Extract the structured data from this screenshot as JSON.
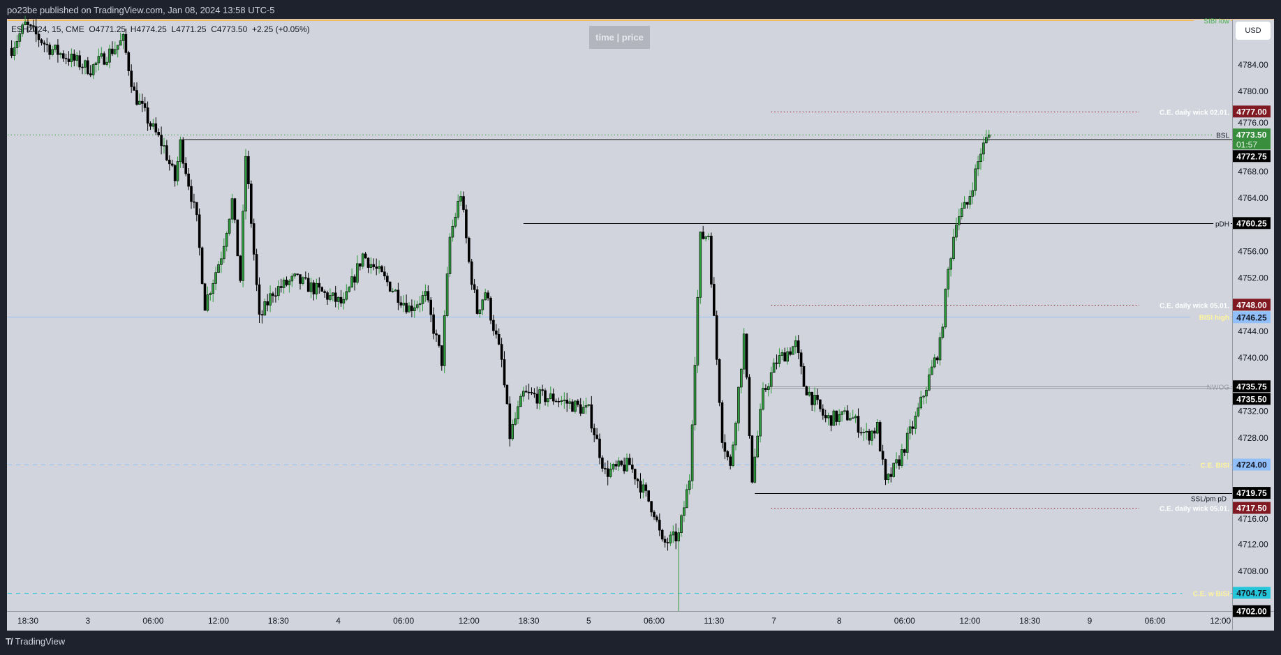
{
  "header": {
    "published": "po23be published on TradingView.com, Jan 08, 2024 13:58 UTC-5"
  },
  "legend": {
    "symbol": "ESH2024, 15, CME",
    "open": "O4771.25",
    "high": "H4774.25",
    "low": "L4771.25",
    "close": "C4773.50",
    "change": "+2.25 (+0.05%)"
  },
  "toolbar": {
    "time_price_label": "time | price",
    "currency": "USD"
  },
  "footer": {
    "brand": "TradingView",
    "logo_text": "TV"
  },
  "colors": {
    "background": "#d1d4dc",
    "up": "#2e9b3c",
    "down": "#000000",
    "sibi": "#f5b74d",
    "bisi": "#90bff9",
    "w_bisi": "#26c6da",
    "daily_wick": "#801922",
    "current": "#388e3c"
  },
  "chart_data": {
    "type": "candlestick",
    "symbol": "ESH2024",
    "timeframe": "15",
    "y_ticks": [
      4784,
      4780,
      4776,
      4768,
      4764,
      4756,
      4752,
      4744,
      4740,
      4732,
      4728,
      4716,
      4712,
      4708
    ],
    "x_ticks": [
      {
        "label": "18:30",
        "t": "01-02 18:30"
      },
      {
        "label": "3",
        "t": "01-03 00:00"
      },
      {
        "label": "06:00",
        "t": "01-03 06:00"
      },
      {
        "label": "12:00",
        "t": "01-03 12:00"
      },
      {
        "label": "18:30",
        "t": "01-03 18:30"
      },
      {
        "label": "4",
        "t": "01-04 00:00"
      },
      {
        "label": "06:00",
        "t": "01-04 06:00"
      },
      {
        "label": "12:00",
        "t": "01-04 12:00"
      },
      {
        "label": "18:30",
        "t": "01-04 18:30"
      },
      {
        "label": "5",
        "t": "01-05 00:00"
      },
      {
        "label": "06:00",
        "t": "01-05 06:00"
      },
      {
        "label": "11:30",
        "t": "01-05 11:30"
      },
      {
        "label": "7",
        "t": "01-07 18:00"
      },
      {
        "label": "8",
        "t": "01-08 00:00"
      },
      {
        "label": "06:00",
        "t": "01-08 06:00"
      },
      {
        "label": "12:00",
        "t": "01-08 12:00"
      },
      {
        "label": "18:30",
        "t": "01-08 18:30"
      },
      {
        "label": "9",
        "t": "01-09 00:00"
      },
      {
        "label": "06:00",
        "t": "01-09 06:00"
      },
      {
        "label": "12:00",
        "t": "01-09 12:00"
      }
    ],
    "price_path": [
      [
        "01-02 16:00",
        4786.5
      ],
      [
        "01-02 18:15",
        4790
      ],
      [
        "01-02 20:30",
        4786.5
      ],
      [
        "01-03 00:15",
        4783.4
      ],
      [
        "01-03 01:45",
        4785.5
      ],
      [
        "01-03 03:15",
        4787.7
      ],
      [
        "01-03 04:15",
        4779.7
      ],
      [
        "01-03 05:45",
        4775
      ],
      [
        "01-03 07:00",
        4771.6
      ],
      [
        "01-03 08:00",
        4766.7
      ],
      [
        "01-03 08:30",
        4772.2
      ],
      [
        "01-03 10:00",
        4760.5
      ],
      [
        "01-03 10:45",
        4748
      ],
      [
        "01-03 12:15",
        4755.5
      ],
      [
        "01-03 13:15",
        4763.6
      ],
      [
        "01-03 14:00",
        4751.8
      ],
      [
        "01-03 14:30",
        4770.4
      ],
      [
        "01-03 15:45",
        4745.7
      ],
      [
        "01-03 18:00",
        4750
      ],
      [
        "01-03 20:00",
        4751.8
      ],
      [
        "01-03 22:15",
        4750
      ],
      [
        "01-04 00:30",
        4748
      ],
      [
        "01-04 02:15",
        4755.5
      ],
      [
        "01-04 04:15",
        4751.8
      ],
      [
        "01-04 06:30",
        4747.5
      ],
      [
        "01-04 08:00",
        4749.3
      ],
      [
        "01-04 09:30",
        4739.5
      ],
      [
        "01-04 10:15",
        4758
      ],
      [
        "01-04 11:15",
        4764.8
      ],
      [
        "01-04 12:00",
        4754.3
      ],
      [
        "01-04 12:45",
        4747
      ],
      [
        "01-04 13:30",
        4750
      ],
      [
        "01-04 15:00",
        4739.5
      ],
      [
        "01-04 15:45",
        4728.3
      ],
      [
        "01-04 18:00",
        4734.5
      ],
      [
        "01-04 21:00",
        4733.9
      ],
      [
        "01-05 00:00",
        4732
      ],
      [
        "01-05 01:30",
        4722.8
      ],
      [
        "01-05 03:45",
        4724
      ],
      [
        "01-05 06:00",
        4717
      ],
      [
        "01-05 06:45",
        4712
      ],
      [
        "01-05 08:15",
        4713.3
      ],
      [
        "01-05 09:15",
        4722
      ],
      [
        "01-05 10:15",
        4758
      ],
      [
        "01-05 11:00",
        4758.6
      ],
      [
        "01-05 11:30",
        4745.7
      ],
      [
        "01-05 12:15",
        4728.3
      ],
      [
        "01-05 13:00",
        4723.4
      ],
      [
        "01-05 14:15",
        4743.2
      ],
      [
        "01-05 15:00",
        4722
      ],
      [
        "01-05 16:00",
        4734.5
      ],
      [
        "01-07 18:15",
        4739.5
      ],
      [
        "01-07 20:00",
        4742
      ],
      [
        "01-07 20:45",
        4736
      ],
      [
        "01-07 22:45",
        4730.8
      ],
      [
        "01-08 01:00",
        4731.4
      ],
      [
        "01-08 02:30",
        4728.3
      ],
      [
        "01-08 03:30",
        4729.6
      ],
      [
        "01-08 04:15",
        4721
      ],
      [
        "01-08 05:30",
        4724.7
      ],
      [
        "01-08 07:00",
        4730.8
      ],
      [
        "01-08 08:00",
        4735.8
      ],
      [
        "01-08 09:15",
        4742
      ],
      [
        "01-08 10:00",
        4753
      ],
      [
        "01-08 10:45",
        4761
      ],
      [
        "01-08 11:45",
        4763
      ],
      [
        "01-08 13:00",
        4771
      ],
      [
        "01-08 13:45",
        4773.5
      ]
    ],
    "extremes": {
      "low": 4702.0,
      "last_high": 4774.25
    },
    "last_price": 4773.5,
    "countdown": "01:57",
    "levels": [
      {
        "label": "SIBI low",
        "price": 4790.75,
        "style": "solid",
        "color": "#f5b74d",
        "label_color": "#4caf50",
        "from": null,
        "badge": null
      },
      {
        "label": "C.E. daily wick 02.01.",
        "price": 4777.0,
        "style": "dotted",
        "color": "#801922",
        "label_color": "#ffffff",
        "from": "01-05 16:45",
        "badge": "4777.00",
        "badge_bg": "#801922",
        "badge_fg": "#ffffff"
      },
      {
        "label": "BSL",
        "price": 4773.5,
        "style": "dotted",
        "color": "#2e9b3c",
        "label_color": "#131722",
        "from": null,
        "badge": null
      },
      {
        "label": "",
        "price": 4772.75,
        "style": "solid",
        "color": "#000000",
        "from": "01-03 08:30",
        "badge": "4772.75",
        "badge_bg": "#000000",
        "badge_fg": "#ffffff"
      },
      {
        "label": "pDH",
        "price": 4760.25,
        "style": "solid",
        "color": "#000000",
        "label_color": "#131722",
        "from": "01-04 18:00",
        "badge": "4760.25",
        "badge_bg": "#000000",
        "badge_fg": "#ffffff"
      },
      {
        "label": "C.E. daily wick 05.01.",
        "price": 4748.0,
        "style": "dotted",
        "color": "#801922",
        "label_color": "#ffffff",
        "from": "01-05 16:45",
        "badge": "4748.00",
        "badge_bg": "#801922",
        "badge_fg": "#ffffff"
      },
      {
        "label": "BISI high",
        "price": 4746.25,
        "style": "solid",
        "color": "#90bff9",
        "label_color": "#fff59d",
        "from": null,
        "badge": "4746.25",
        "badge_bg": "#90bff9",
        "badge_fg": "#131722"
      },
      {
        "label": "NWOG",
        "price": 4735.75,
        "style": "solid",
        "color": "#9598a1",
        "label_color": "#9598a1",
        "from": "01-05 16:30",
        "badge": "4735.75",
        "badge_bg": "#000000",
        "badge_fg": "#ffffff"
      },
      {
        "label": "",
        "price": 4735.5,
        "style": "solid",
        "color": "#9598a1",
        "from": "01-05 16:30",
        "badge": "4735.50",
        "badge_bg": "#000000",
        "badge_fg": "#ffffff"
      },
      {
        "label": "C.E. BISI",
        "price": 4724.0,
        "style": "dashed",
        "color": "#90bff9",
        "label_color": "#fff59d",
        "from": null,
        "badge": "4724.00",
        "badge_bg": "#90bff9",
        "badge_fg": "#131722"
      },
      {
        "label": "SSL/pm pD",
        "price": 4719.75,
        "style": "solid",
        "color": "#000000",
        "label_color": "#131722",
        "label_below": true,
        "from": "01-05 15:15",
        "badge": "4719.75",
        "badge_bg": "#000000",
        "badge_fg": "#ffffff"
      },
      {
        "label": "C.E. daily wick 05.01.",
        "price": 4717.5,
        "style": "dotted",
        "color": "#801922",
        "label_color": "#ffffff",
        "from": "01-05 16:45",
        "badge": "4717.50",
        "badge_bg": "#801922",
        "badge_fg": "#ffffff"
      },
      {
        "label": "C.E. w BISI",
        "price": 4704.75,
        "style": "dashed",
        "color": "#26c6da",
        "label_color": "#fff59d",
        "from": null,
        "badge": "4704.75",
        "badge_bg": "#26c6da",
        "badge_fg": "#131722"
      },
      {
        "label": "",
        "price": 4702.0,
        "style": "none",
        "color": "#000000",
        "from": null,
        "badge": "4702.00",
        "badge_bg": "#000000",
        "badge_fg": "#ffffff"
      }
    ]
  }
}
